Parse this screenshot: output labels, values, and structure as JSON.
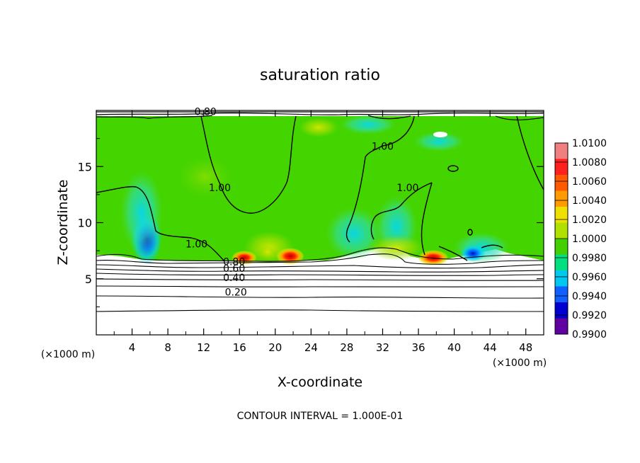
{
  "chart_data": {
    "type": "heatmap",
    "title": "saturation ratio",
    "xlabel": "X-coordinate",
    "ylabel": "Z-coordinate",
    "x_unit": "(×1000 m)",
    "x_unit_right": "(×1000 m)",
    "footer": "CONTOUR INTERVAL = 1.000E-01",
    "xlim": [
      0,
      50
    ],
    "ylim": [
      0,
      20
    ],
    "xticks": [
      4,
      8,
      12,
      16,
      20,
      24,
      28,
      32,
      36,
      40,
      44,
      48
    ],
    "yticks": [
      5,
      10,
      15
    ],
    "colorbar": {
      "min": 0.99,
      "max": 1.01,
      "labels": [
        "1.0100",
        "1.0080",
        "1.0060",
        "1.0040",
        "1.0020",
        "1.0000",
        "0.9980",
        "0.9960",
        "0.9940",
        "0.9920",
        "0.9900"
      ],
      "colors": [
        "#f08080",
        "#ff2020",
        "#ff5a00",
        "#ff9a00",
        "#f0e000",
        "#b0e000",
        "#44d000",
        "#00e080",
        "#00c8f0",
        "#1060ff",
        "#0000d0",
        "#6000a0"
      ]
    },
    "contour_labels": [
      {
        "text": "0.80",
        "x": 12.2,
        "z": 19.6
      },
      {
        "text": "1.00",
        "x": 32.0,
        "z": 16.5
      },
      {
        "text": "1.00",
        "x": 13.8,
        "z": 12.8
      },
      {
        "text": "1.00",
        "x": 34.8,
        "z": 12.8
      },
      {
        "text": "1.00",
        "x": 11.2,
        "z": 7.8
      },
      {
        "text": "0.80",
        "x": 15.4,
        "z": 6.2
      },
      {
        "text": "0.60",
        "x": 15.4,
        "z": 5.6
      },
      {
        "text": "0.40",
        "x": 15.4,
        "z": 4.8
      },
      {
        "text": "0.20",
        "x": 15.6,
        "z": 3.5
      }
    ]
  }
}
